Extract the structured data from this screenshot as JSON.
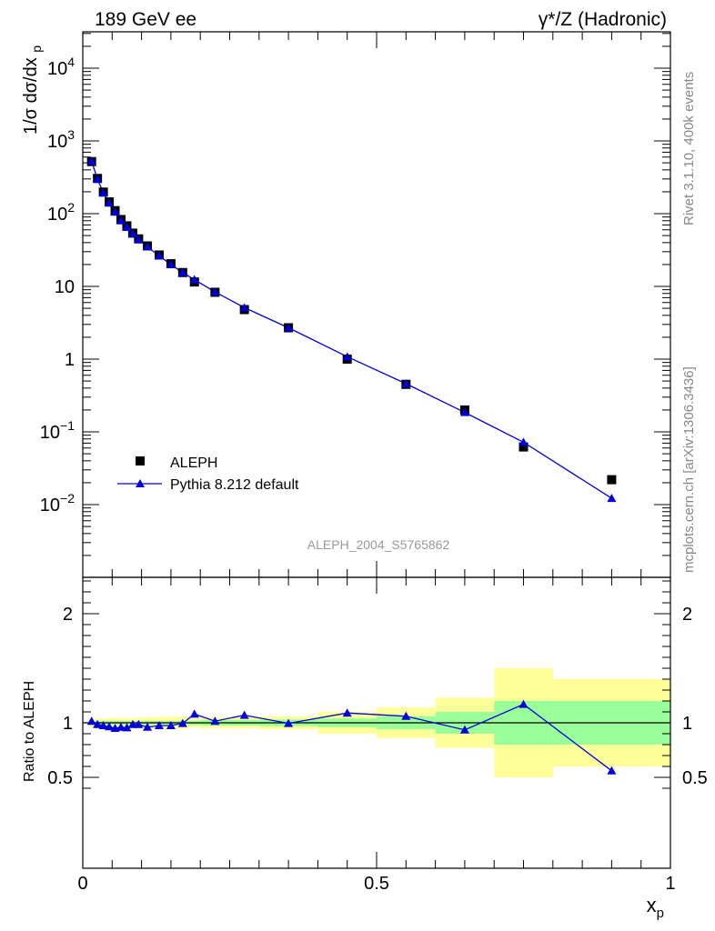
{
  "header": {
    "left": "189 GeV ee",
    "right": "γ*/Z (Hadronic)"
  },
  "side_labels": {
    "rivet": "Rivet 3.1.10,  400k events",
    "mcplots": "mcplots.cern.ch [arXiv:1306.3436]"
  },
  "analysis_id": "ALEPH_2004_S5765862",
  "colors": {
    "mc_line": "#0000dd",
    "data_marker": "#000000",
    "band_inner": "#99ff99",
    "band_outer": "#ffff99"
  },
  "chart_data": [
    {
      "type": "scatter",
      "ylabel": "1/σ dσ/dx_p",
      "yscale": "log",
      "xlim": [
        0,
        1
      ],
      "ylim": [
        0.001,
        30000
      ],
      "y_tick_labels": [
        "10^-2",
        "10^-1",
        "1",
        "10",
        "10^2",
        "10^3",
        "10^4"
      ],
      "legend": {
        "placement": "lower-left",
        "entries": [
          "ALEPH",
          "Pythia 8.212 default"
        ]
      },
      "series": [
        {
          "name": "ALEPH",
          "marker": "square",
          "x": [
            0.015,
            0.025,
            0.035,
            0.045,
            0.055,
            0.065,
            0.075,
            0.085,
            0.095,
            0.11,
            0.13,
            0.15,
            0.17,
            0.19,
            0.225,
            0.275,
            0.35,
            0.45,
            0.55,
            0.65,
            0.75,
            0.9
          ],
          "y": [
            520,
            305,
            198,
            145,
            110,
            83,
            68,
            54,
            45,
            36,
            27,
            20.5,
            15.5,
            11.5,
            8.3,
            4.8,
            2.7,
            1.0,
            0.45,
            0.2,
            0.062,
            0.022
          ]
        },
        {
          "name": "Pythia 8.212 default",
          "marker": "triangle",
          "x": [
            0.015,
            0.025,
            0.035,
            0.045,
            0.055,
            0.065,
            0.075,
            0.085,
            0.095,
            0.11,
            0.13,
            0.15,
            0.17,
            0.19,
            0.225,
            0.275,
            0.35,
            0.45,
            0.55,
            0.65,
            0.75,
            0.9
          ],
          "y": [
            528,
            300,
            193,
            140,
            105,
            80,
            65,
            53,
            44,
            35,
            26.3,
            20.0,
            15.5,
            12.4,
            8.4,
            5.1,
            2.7,
            1.08,
            0.46,
            0.185,
            0.072,
            0.0122
          ]
        }
      ]
    },
    {
      "type": "line",
      "ylabel": "Ratio to ALEPH",
      "xlabel": "x_p",
      "xlim": [
        0,
        1
      ],
      "ylim": [
        0.35,
        2.3
      ],
      "y_tick_labels": [
        "0.5",
        "1",
        "2"
      ],
      "x_tick_labels": [
        "0",
        "0.5",
        "1"
      ],
      "x": [
        0.015,
        0.025,
        0.035,
        0.045,
        0.055,
        0.065,
        0.075,
        0.085,
        0.095,
        0.11,
        0.13,
        0.15,
        0.17,
        0.19,
        0.225,
        0.275,
        0.35,
        0.45,
        0.55,
        0.65,
        0.75,
        0.9
      ],
      "series": [
        {
          "name": "Pythia 8.212 default",
          "values": [
            1.015,
            0.985,
            0.975,
            0.965,
            0.95,
            0.96,
            0.955,
            0.985,
            0.985,
            0.96,
            0.975,
            0.975,
            0.995,
            1.08,
            1.015,
            1.07,
            0.995,
            1.09,
            1.06,
            0.935,
            1.17,
            0.56
          ]
        }
      ],
      "bands": {
        "bin_edges": [
          0.01,
          0.02,
          0.03,
          0.04,
          0.05,
          0.06,
          0.07,
          0.08,
          0.09,
          0.1,
          0.12,
          0.14,
          0.16,
          0.18,
          0.2,
          0.25,
          0.3,
          0.4,
          0.5,
          0.6,
          0.7,
          0.8,
          1.0
        ],
        "inner_half_width": [
          0.015,
          0.015,
          0.015,
          0.015,
          0.015,
          0.015,
          0.015,
          0.015,
          0.015,
          0.015,
          0.015,
          0.015,
          0.015,
          0.02,
          0.025,
          0.025,
          0.03,
          0.04,
          0.06,
          0.1,
          0.2,
          0.2
        ],
        "outer_half_width": [
          0.04,
          0.04,
          0.04,
          0.04,
          0.045,
          0.045,
          0.045,
          0.045,
          0.045,
          0.05,
          0.055,
          0.055,
          0.06,
          0.04,
          0.05,
          0.05,
          0.06,
          0.1,
          0.14,
          0.23,
          0.5,
          0.4
        ]
      },
      "reference_line": 1
    }
  ]
}
